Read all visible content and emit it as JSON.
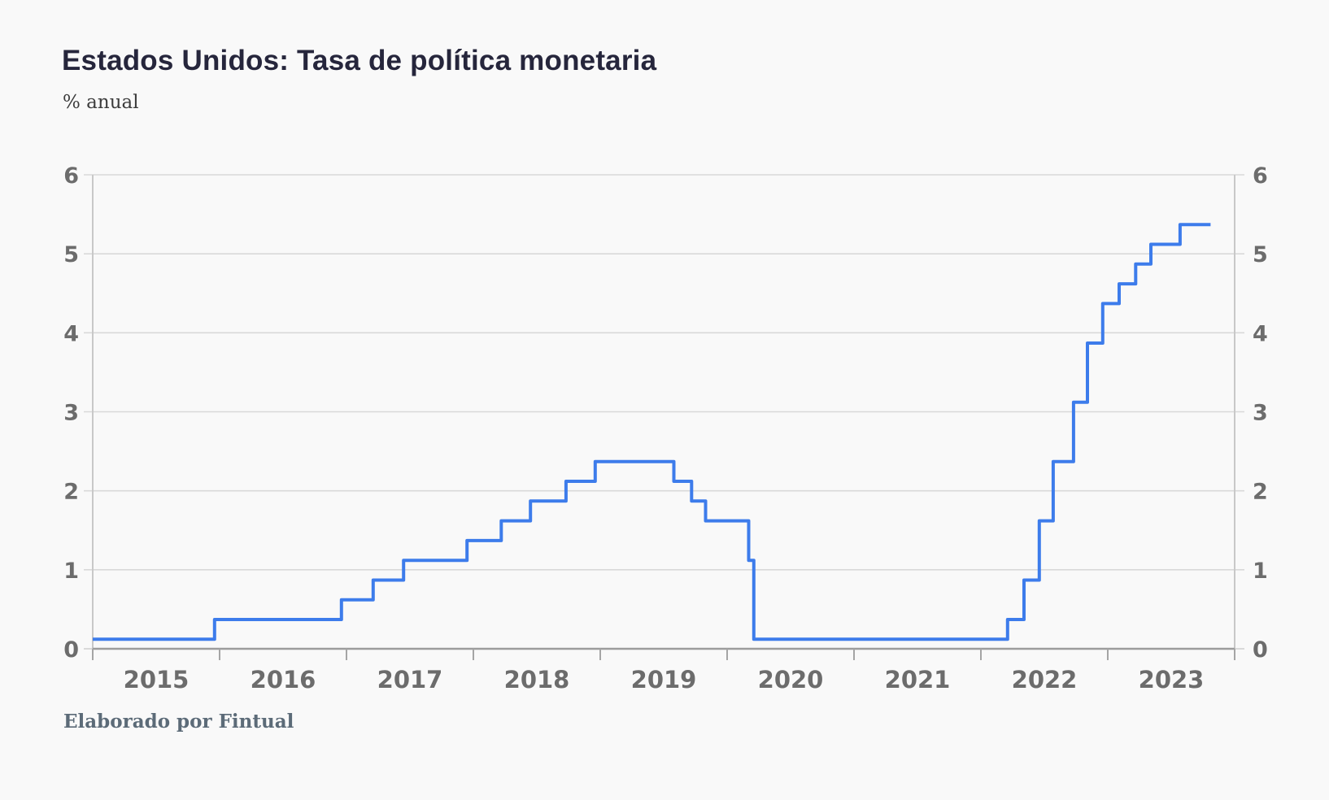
{
  "header": {
    "title": "Estados Unidos: Tasa de política monetaria",
    "subtitle": "% anual"
  },
  "footer": {
    "credit": "Elaborado por Fintual"
  },
  "colors": {
    "background": "#f9f9f9",
    "grid": "#d9d9d9",
    "baseline": "#9c9c9c",
    "side_axis": "#c8c8c8",
    "tick": "#a5a5a5",
    "tick_label": "#6c6c6c",
    "title": "#26263c",
    "credit": "#5c6b78",
    "line": "#3d7ceb"
  },
  "chart_data": {
    "type": "line",
    "step": true,
    "title": "Estados Unidos: Tasa de política monetaria",
    "ylabel": "% anual",
    "x_range": [
      2015,
      2024
    ],
    "y_range": [
      0,
      6
    ],
    "y_ticks": [
      0,
      1,
      2,
      3,
      4,
      5,
      6
    ],
    "y_tick_sides": "both",
    "x_tick_labels": [
      "2015",
      "2016",
      "2017",
      "2018",
      "2019",
      "2020",
      "2021",
      "2022",
      "2023"
    ],
    "grid": "horizontal",
    "legend": "none",
    "line_color": "#3d7ceb",
    "series": [
      {
        "name": "Tasa de política monetaria (% anual)",
        "steps": [
          [
            2015.0,
            0.12
          ],
          [
            2015.96,
            0.37
          ],
          [
            2016.96,
            0.62
          ],
          [
            2017.21,
            0.87
          ],
          [
            2017.45,
            1.12
          ],
          [
            2017.95,
            1.37
          ],
          [
            2018.22,
            1.62
          ],
          [
            2018.45,
            1.87
          ],
          [
            2018.73,
            2.12
          ],
          [
            2018.96,
            2.37
          ],
          [
            2019.58,
            2.12
          ],
          [
            2019.72,
            1.87
          ],
          [
            2019.83,
            1.62
          ],
          [
            2020.17,
            1.12
          ],
          [
            2020.21,
            0.12
          ],
          [
            2022.21,
            0.37
          ],
          [
            2022.34,
            0.87
          ],
          [
            2022.46,
            1.62
          ],
          [
            2022.57,
            2.37
          ],
          [
            2022.73,
            3.12
          ],
          [
            2022.84,
            3.87
          ],
          [
            2022.96,
            4.37
          ],
          [
            2023.09,
            4.62
          ],
          [
            2023.22,
            4.87
          ],
          [
            2023.34,
            5.12
          ],
          [
            2023.57,
            5.37
          ]
        ],
        "x_end": 2023.81
      }
    ]
  }
}
